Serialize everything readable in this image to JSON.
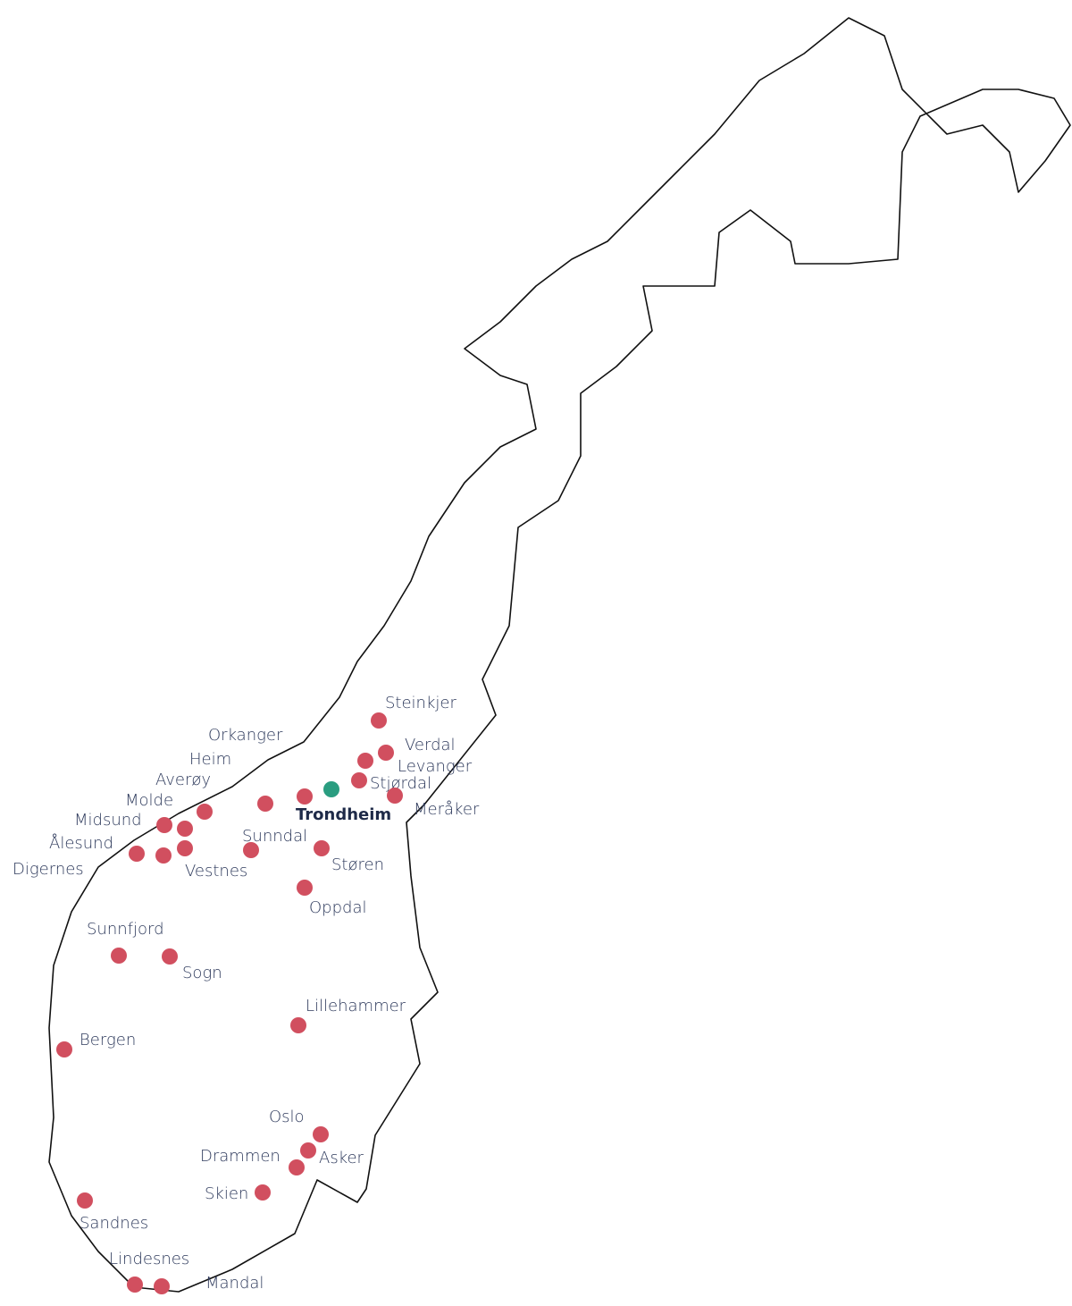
{
  "places": [
    "Steinkjer",
    "Verdal",
    "Levanger",
    "Stjørdal",
    "Meråker",
    "Orkanger",
    "Heim",
    "Averøy",
    "Molde",
    "Midsund",
    "Ålesund",
    "Digernes",
    "Vestnes",
    "Sunndal",
    "Støren",
    "Oppdal",
    "Sunnfjord",
    "Sogn",
    "Lillehammer",
    "Bergen",
    "Oslo",
    "Asker",
    "Drammen",
    "Skien",
    "Sandnes",
    "Lindesnes",
    "Mandal"
  ],
  "home": "Trondheim"
}
